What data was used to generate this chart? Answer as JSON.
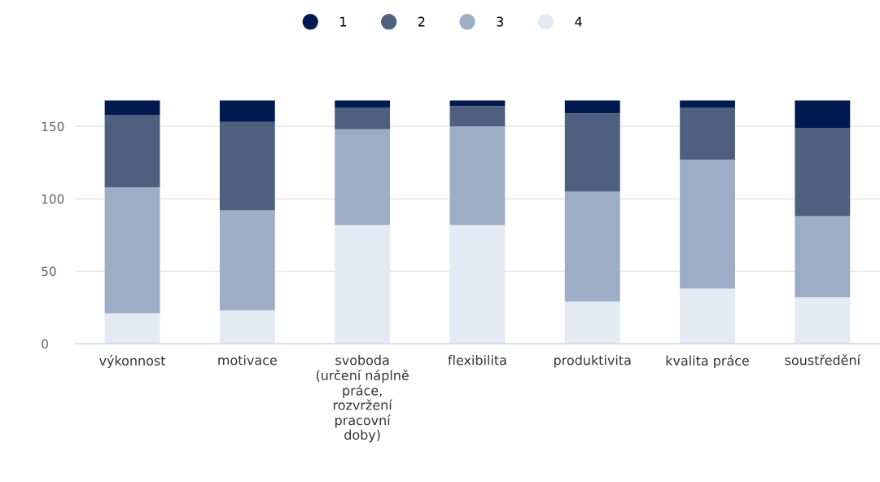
{
  "chart_data": {
    "type": "bar",
    "stacked": true,
    "categories": [
      "výkonnost",
      "motivace",
      "svoboda\n(určení náplně\npráce,\nrozvržení\npracovní\ndoby)",
      "flexibilita",
      "produktivita",
      "kvalita práce",
      "soustředění"
    ],
    "series": [
      {
        "name": "4",
        "color": "#e3eaf3",
        "values": [
          21,
          23,
          82,
          82,
          29,
          38,
          32
        ]
      },
      {
        "name": "3",
        "color": "#9dadc5",
        "values": [
          87,
          69,
          66,
          68,
          76,
          89,
          56
        ]
      },
      {
        "name": "2",
        "color": "#4f5f80",
        "values": [
          50,
          61,
          15,
          14,
          54,
          36,
          61
        ]
      },
      {
        "name": "1",
        "color": "#001a4f",
        "values": [
          10,
          15,
          5,
          4,
          9,
          5,
          19
        ]
      }
    ],
    "ylim": [
      0,
      168
    ],
    "yticks": [
      0,
      50,
      100,
      150
    ],
    "grid": "y",
    "legend": "top"
  }
}
